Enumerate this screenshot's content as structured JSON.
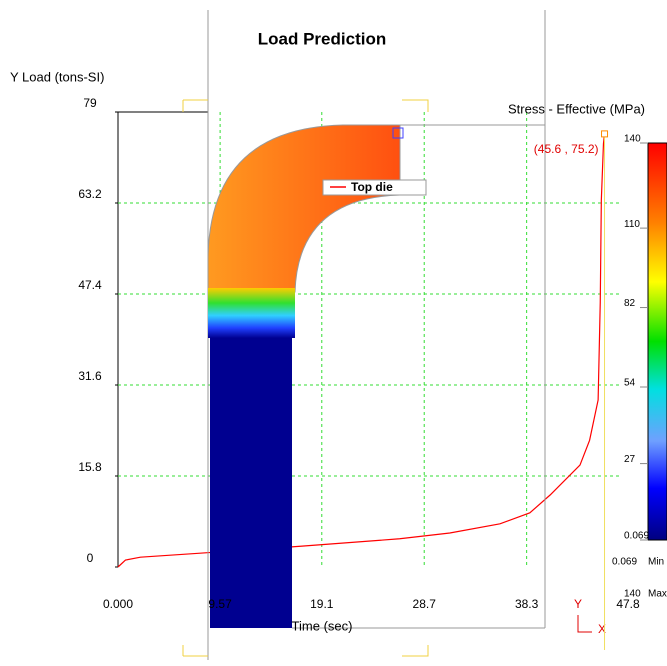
{
  "chart_data": {
    "type": "line",
    "title": "Load Prediction",
    "y_label": "Y Load (tons-SI)",
    "x_label": "Time (sec)",
    "x": [
      0,
      0.7,
      2.1,
      7.7,
      17.1,
      26.4,
      31.1,
      35.8,
      38.6,
      40.5,
      43.3,
      44.2,
      45.0,
      45.2,
      45.3,
      45.5,
      45.6
    ],
    "series": [
      {
        "name": "Top die",
        "color": "#ff0000",
        "values": [
          0,
          1.2,
          1.7,
          2.4,
          3.6,
          4.9,
          5.9,
          7.5,
          9.4,
          12.5,
          17.7,
          22,
          29,
          46,
          63.7,
          73.5,
          75.2
        ]
      }
    ],
    "xlim": [
      0,
      47.8
    ],
    "ylim": [
      0,
      79
    ],
    "xticks": [
      {
        "value": 0,
        "label": "0.000"
      },
      9.57,
      19.1,
      28.7,
      38.3,
      47.8
    ],
    "yticks": [
      0,
      15.8,
      31.6,
      47.4,
      63.2,
      79
    ],
    "grid": true,
    "grid_color": "#33dd33",
    "cursor": {
      "x": 45.6,
      "y": 75.2,
      "label": "(45.6 , 75.2)",
      "color": "#ff8c00"
    },
    "colorbar": {
      "title": "Stress - Effective (MPa)",
      "range": [
        0.069,
        140
      ],
      "ticks": [
        140,
        110,
        82,
        54,
        27,
        0.069
      ],
      "min": 0.069,
      "min_label": "Min",
      "max": 140,
      "max_label": "Max"
    },
    "axis_triad": {
      "y": "Y",
      "x": "X"
    }
  }
}
